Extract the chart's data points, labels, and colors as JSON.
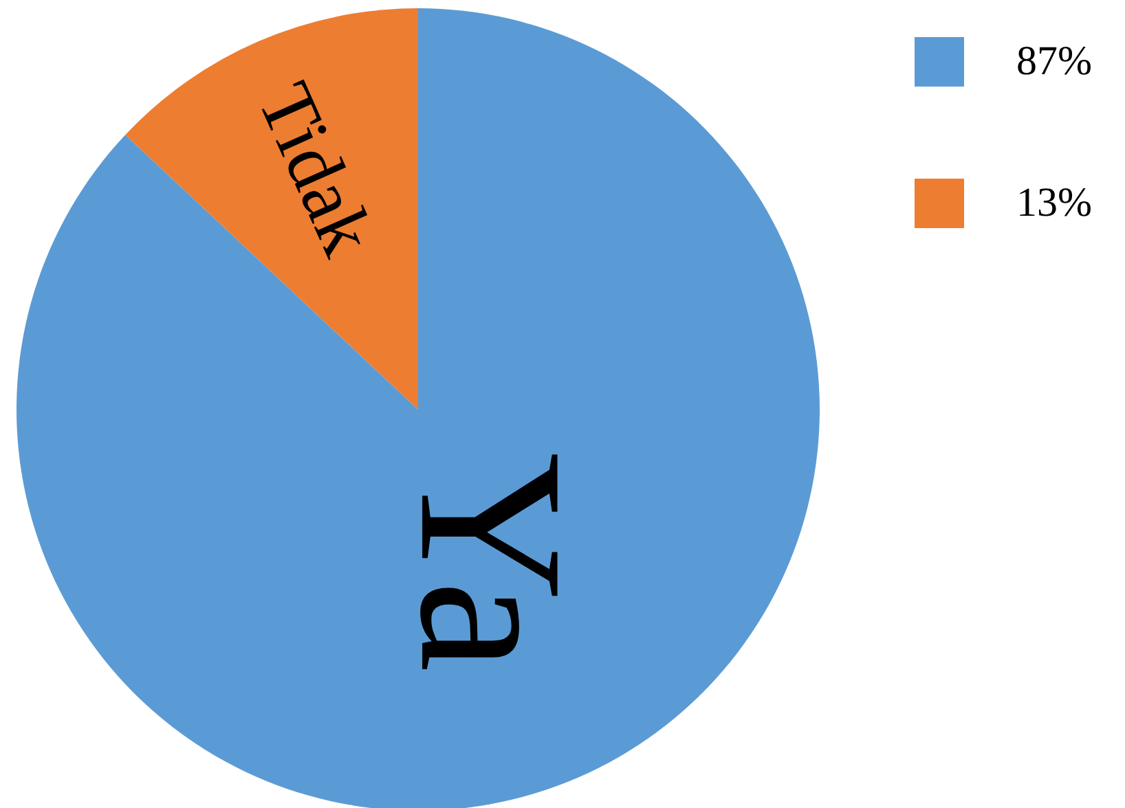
{
  "chart_data": {
    "type": "pie",
    "categories": [
      "87%",
      "13%"
    ],
    "values": [
      87,
      13
    ],
    "colors": [
      "#5b9bd5",
      "#ed7d31"
    ],
    "annotations": [
      {
        "text": "Ya",
        "x": "87%"
      },
      {
        "text": "Tidak",
        "x": "13%"
      }
    ],
    "legend": "top right"
  }
}
